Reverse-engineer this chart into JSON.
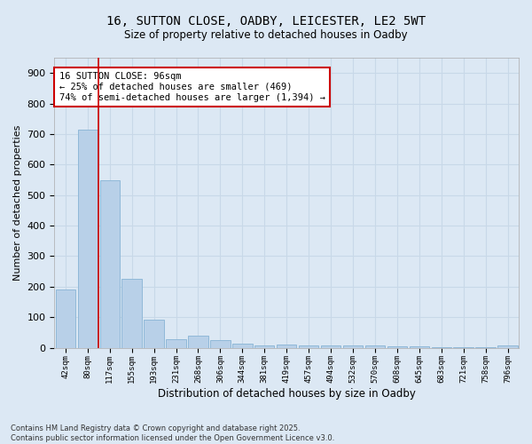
{
  "title_line1": "16, SUTTON CLOSE, OADBY, LEICESTER, LE2 5WT",
  "title_line2": "Size of property relative to detached houses in Oadby",
  "xlabel": "Distribution of detached houses by size in Oadby",
  "ylabel": "Number of detached properties",
  "categories": [
    "42sqm",
    "80sqm",
    "117sqm",
    "155sqm",
    "193sqm",
    "231sqm",
    "268sqm",
    "306sqm",
    "344sqm",
    "381sqm",
    "419sqm",
    "457sqm",
    "494sqm",
    "532sqm",
    "570sqm",
    "608sqm",
    "645sqm",
    "683sqm",
    "721sqm",
    "758sqm",
    "796sqm"
  ],
  "values": [
    190,
    715,
    548,
    226,
    92,
    28,
    38,
    25,
    12,
    8,
    9,
    8,
    7,
    6,
    6,
    5,
    4,
    3,
    2,
    1,
    7
  ],
  "bar_color": "#b8d0e8",
  "bar_edgecolor": "#90b8d8",
  "vline_x_index": 1.5,
  "vline_color": "#cc0000",
  "annotation_text": "16 SUTTON CLOSE: 96sqm\n← 25% of detached houses are smaller (469)\n74% of semi-detached houses are larger (1,394) →",
  "annotation_box_color": "#ffffff",
  "annotation_box_edgecolor": "#cc0000",
  "ylim": [
    0,
    950
  ],
  "yticks": [
    0,
    100,
    200,
    300,
    400,
    500,
    600,
    700,
    800,
    900
  ],
  "grid_color": "#c8d8e8",
  "background_color": "#dce8f4",
  "footer_line1": "Contains HM Land Registry data © Crown copyright and database right 2025.",
  "footer_line2": "Contains public sector information licensed under the Open Government Licence v3.0."
}
